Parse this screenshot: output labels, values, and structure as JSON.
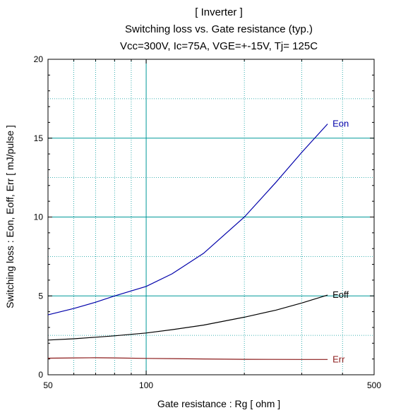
{
  "chart_data": {
    "type": "line",
    "title": "[ Inverter ]",
    "subtitle": "Switching loss  vs.  Gate resistance (typ.)",
    "conditions": "Vcc=300V, Ic=75A, VGE=+-15V, Tj= 125C",
    "xlabel": "Gate resistance  :  Rg  [ ohm ]",
    "ylabel": "Switching loss  :  Eon, Eoff, Err  [ mJ/pulse ]",
    "x_scale": "log",
    "xlim": [
      50,
      500
    ],
    "ylim": [
      0,
      20
    ],
    "x_ticks": [
      "50",
      "100",
      "500"
    ],
    "y_ticks": [
      "0",
      "5",
      "10",
      "15",
      "20"
    ],
    "grid": true,
    "series": [
      {
        "name": "Eon",
        "color": "#0000aa",
        "x": [
          50,
          60,
          70,
          80,
          100,
          120,
          150,
          200,
          250,
          300,
          360
        ],
        "y": [
          3.8,
          4.2,
          4.6,
          5.0,
          5.6,
          6.4,
          7.7,
          10.0,
          12.2,
          14.1,
          15.9
        ]
      },
      {
        "name": "Eoff",
        "color": "#000000",
        "x": [
          50,
          60,
          70,
          80,
          100,
          120,
          150,
          200,
          250,
          300,
          360
        ],
        "y": [
          2.2,
          2.28,
          2.38,
          2.47,
          2.65,
          2.86,
          3.15,
          3.65,
          4.1,
          4.55,
          5.05
        ]
      },
      {
        "name": "Err",
        "color": "#8b1a1a",
        "x": [
          50,
          60,
          70,
          80,
          100,
          150,
          200,
          300,
          360
        ],
        "y": [
          1.05,
          1.07,
          1.08,
          1.07,
          1.04,
          1.0,
          0.98,
          0.97,
          0.97
        ]
      }
    ]
  }
}
